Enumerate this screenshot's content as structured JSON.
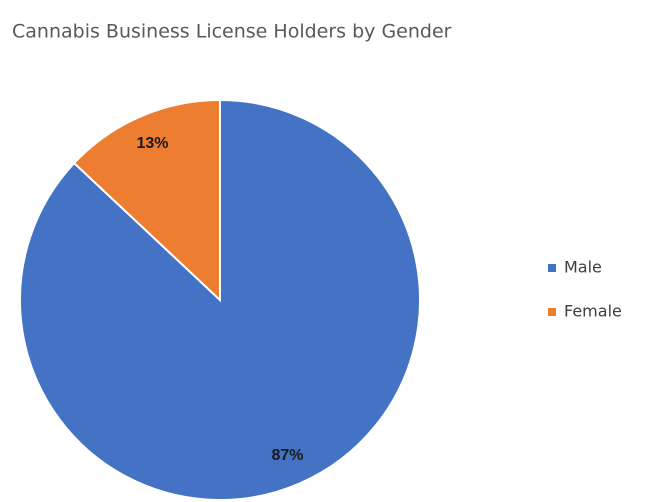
{
  "chart_data": {
    "type": "pie",
    "title": "Cannabis Business License Holders by Gender",
    "categories": [
      "Male",
      "Female"
    ],
    "values": [
      87,
      13
    ],
    "value_labels": [
      "87%",
      "13%"
    ],
    "colors": [
      "#4472c4",
      "#ed7d31"
    ],
    "legend": "right"
  }
}
